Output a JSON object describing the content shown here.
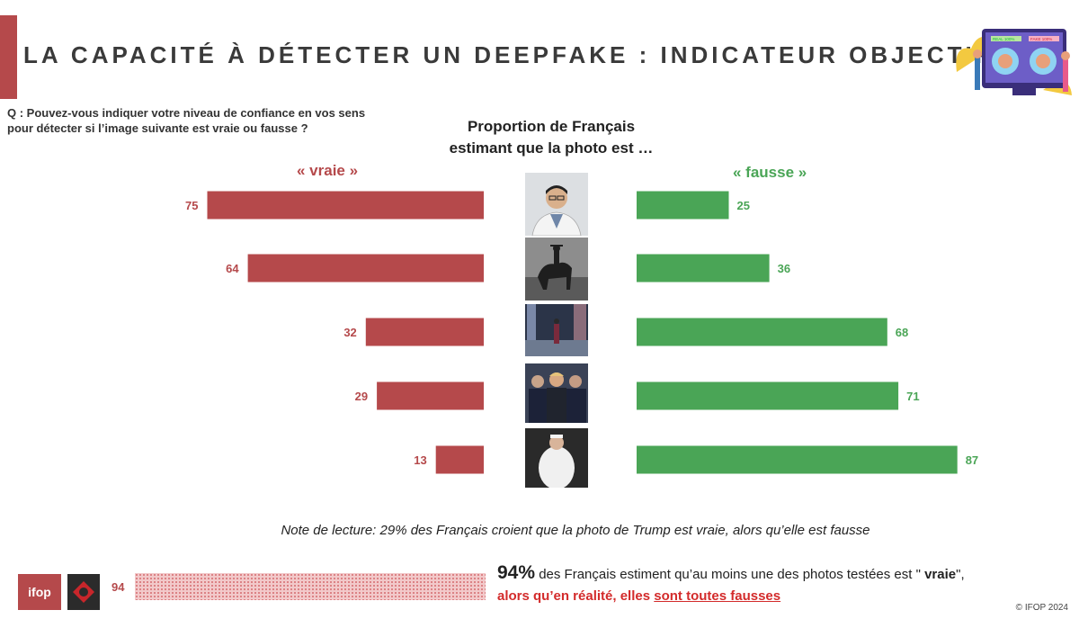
{
  "header": {
    "title": "LA CAPACITÉ À DÉTECTER UN DEEPFAKE : INDICATEUR OBJECTIF",
    "question": "Q : Pouvez-vous indiquer votre niveau de confiance en vos sens pour détecter si l’image suivante est vraie ou fausse ?"
  },
  "center_heading": {
    "line1": "Proportion de Français",
    "line2": "estimant que la photo est …"
  },
  "chart_data": {
    "type": "bar",
    "series": [
      {
        "name": "« vraie »",
        "values": [
          75,
          64,
          32,
          29,
          13
        ],
        "color": "#b5494b"
      },
      {
        "name": "«  fausse »",
        "values": [
          25,
          36,
          68,
          71,
          87
        ],
        "color": "#4aa556"
      }
    ],
    "xlim": [
      0,
      100
    ]
  },
  "photos": [
    "doctor-portrait-photo",
    "horse-rider-photo",
    "city-night-figure-photo",
    "trump-arrest-photo",
    "pope-white-puffer-photo"
  ],
  "note": "Note de lecture: 29% des Français croient que la photo de Trump est vraie, alors qu’elle est fausse",
  "bottom": {
    "value": "94",
    "big": "94%",
    "text1": " des Français estiment qu’au moins une des photos testées est \" ",
    "bold_word": "vraie",
    "text1_end": "\",",
    "red_text": "alors qu’en réalité, elles ",
    "red_under": "sont toutes fausses",
    "fill_fraction": 0.94
  },
  "footer": {
    "logo": "ifop",
    "copyright": "© IFOP 2024"
  },
  "illustration": {
    "real": "REAL 100%",
    "fake": "FAKE 100%"
  }
}
